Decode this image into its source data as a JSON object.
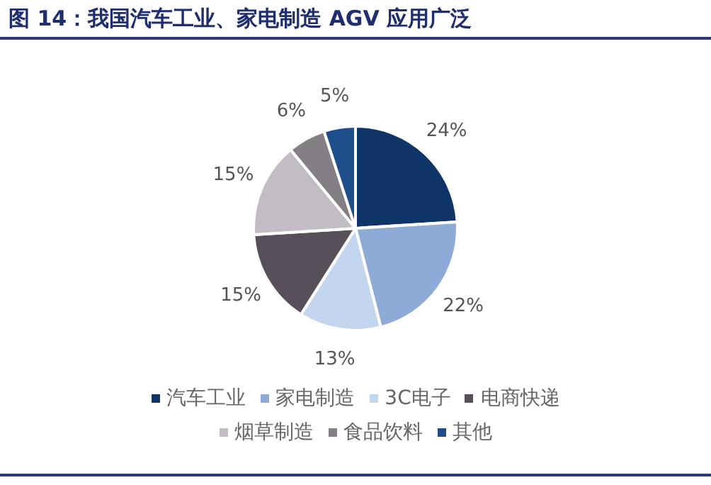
{
  "chart_data": {
    "type": "pie",
    "title": "图 14：我国汽车工业、家电制造 AGV 应用广泛",
    "categories": [
      "汽车工业",
      "家电制造",
      "3C电子",
      "电商快递",
      "烟草制造",
      "食品饮料",
      "其他"
    ],
    "values": [
      24,
      22,
      13,
      15,
      15,
      6,
      5
    ],
    "value_labels": [
      "24%",
      "22%",
      "13%",
      "15%",
      "15%",
      "6%",
      "5%"
    ],
    "colors": [
      "#0f3468",
      "#8eaad6",
      "#c3d6ee",
      "#57505a",
      "#c2bcc4",
      "#847f85",
      "#1f4f8a"
    ],
    "legend": "bottom"
  }
}
